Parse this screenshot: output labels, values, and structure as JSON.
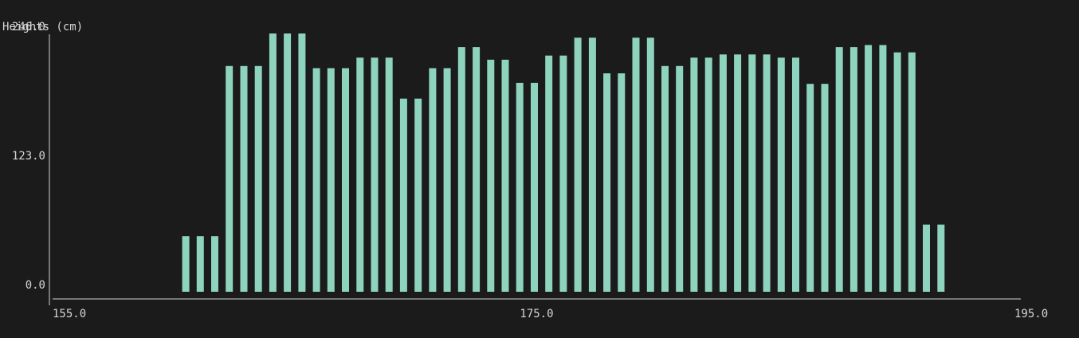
{
  "colors": {
    "background": "#1b1b1b",
    "bar": "#8dd3bd",
    "axis": "#d6d6d6",
    "text": "#d6d6d6"
  },
  "chart_data": {
    "type": "bar",
    "title": "Heights (cm)",
    "xlabel": "",
    "ylabel": "",
    "xlim": [
      155.0,
      195.0
    ],
    "ylim": [
      0,
      246.0
    ],
    "x_ticks": [
      "155.0",
      "175.0",
      "195.0"
    ],
    "y_ticks": [
      "0.0",
      "123.0",
      "246.0"
    ],
    "grid": false,
    "legend": "none",
    "series": [
      {
        "name": "",
        "x": [
          160.5,
          161.1,
          161.7,
          162.3,
          162.9,
          163.5,
          164.1,
          164.7,
          165.3,
          165.9,
          166.5,
          167.1,
          167.7,
          168.3,
          168.9,
          169.5,
          170.1,
          170.7,
          171.3,
          171.9,
          172.5,
          173.1,
          173.7,
          174.3,
          174.9,
          175.5,
          176.1,
          176.7,
          177.3,
          177.9,
          178.5,
          179.1,
          179.7,
          180.3,
          180.9,
          181.5,
          182.1,
          182.7,
          183.3,
          183.9,
          184.5,
          185.1,
          185.7,
          186.3,
          186.9,
          187.5,
          188.1,
          188.7,
          189.3,
          189.9,
          190.5,
          191.1,
          191.7
        ],
        "values": [
          53,
          53,
          53,
          215,
          215,
          215,
          246,
          246,
          246,
          213,
          213,
          213,
          223,
          223,
          223,
          184,
          184,
          213,
          213,
          233,
          233,
          221,
          221,
          199,
          199,
          225,
          225,
          242,
          242,
          208,
          208,
          242,
          242,
          215,
          215,
          223,
          223,
          226,
          226,
          226,
          226,
          223,
          223,
          198,
          198,
          233,
          233,
          235,
          235,
          228,
          228,
          64,
          64
        ]
      }
    ]
  }
}
